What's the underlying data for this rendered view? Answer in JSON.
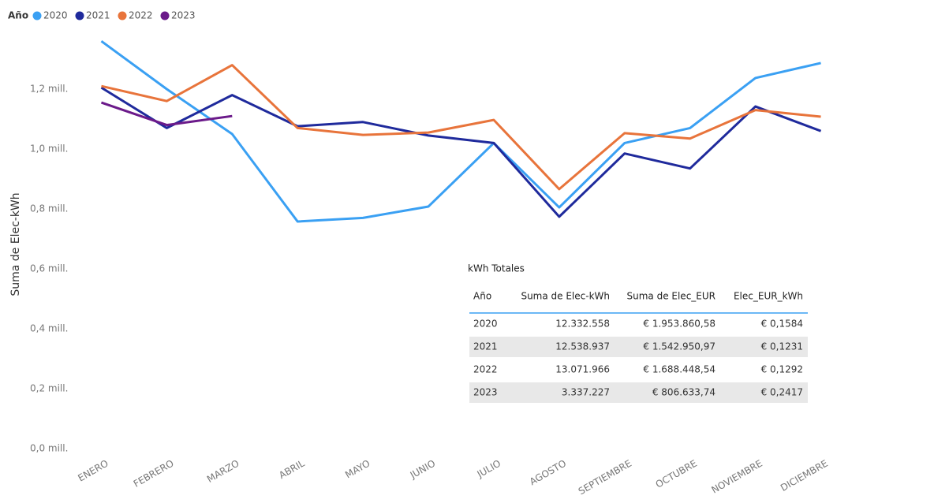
{
  "chart_data": {
    "type": "line",
    "legend_title": "Año",
    "ylabel": "Suma de Elec-kWh",
    "categories": [
      "ENERO",
      "FEBRERO",
      "MARZO",
      "ABRIL",
      "MAYO",
      "JUNIO",
      "JULIO",
      "AGOSTO",
      "SEPTIEMBRE",
      "OCTUBRE",
      "NOVIEMBRE",
      "DICIEMBRE"
    ],
    "series": [
      {
        "name": "2020",
        "color": "#3aa0f3",
        "values": [
          1360000,
          1200000,
          1050000,
          758000,
          770000,
          808000,
          1020000,
          805000,
          1020000,
          1070000,
          1237000,
          1287000
        ]
      },
      {
        "name": "2021",
        "color": "#1f2a9c",
        "values": [
          1205000,
          1070000,
          1180000,
          1076000,
          1090000,
          1045000,
          1020000,
          774000,
          985000,
          935000,
          1142000,
          1060000
        ]
      },
      {
        "name": "2022",
        "color": "#e8743b",
        "values": [
          1210000,
          1160000,
          1280000,
          1070000,
          1047000,
          1055000,
          1097000,
          866000,
          1053000,
          1035000,
          1130000,
          1108000
        ]
      },
      {
        "name": "2023",
        "color": "#6b1a8a",
        "values": [
          1155000,
          1080000,
          1110000,
          null,
          null,
          null,
          null,
          null,
          null,
          null,
          null,
          null
        ]
      }
    ],
    "ylim": [
      0,
      1400000
    ],
    "yticks": [
      {
        "value": 0,
        "label": "0,0 mill."
      },
      {
        "value": 200000,
        "label": "0,2 mill."
      },
      {
        "value": 400000,
        "label": "0,4 mill."
      },
      {
        "value": 600000,
        "label": "0,6 mill."
      },
      {
        "value": 800000,
        "label": "0,8 mill."
      },
      {
        "value": 1000000,
        "label": "1,0 mill."
      },
      {
        "value": 1200000,
        "label": "1,2 mill."
      }
    ],
    "grid": false,
    "legend": "top-left"
  },
  "table": {
    "title": "kWh Totales",
    "columns": [
      "Año",
      "Suma de Elec-kWh",
      "Suma de Elec_EUR",
      "Elec_EUR_kWh"
    ],
    "rows": [
      [
        "2020",
        "12.332.558",
        "€ 1.953.860,58",
        "€ 0,1584"
      ],
      [
        "2021",
        "12.538.937",
        "€ 1.542.950,97",
        "€ 0,1231"
      ],
      [
        "2022",
        "13.071.966",
        "€ 1.688.448,54",
        "€ 0,1292"
      ],
      [
        "2023",
        "3.337.227",
        "€ 806.633,74",
        "€ 0,2417"
      ]
    ]
  }
}
